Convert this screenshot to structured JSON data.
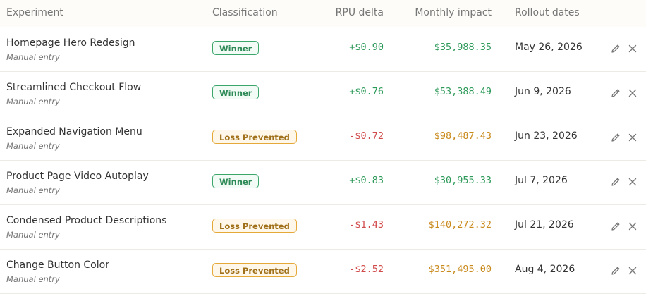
{
  "columns": {
    "experiment": "Experiment",
    "classification": "Classification",
    "rpu": "RPU delta",
    "impact": "Monthly impact",
    "rollout": "Rollout dates"
  },
  "rows": [
    {
      "name": "Homepage Hero Redesign",
      "source": "Manual entry",
      "classification": "Winner",
      "type": "win",
      "rpu": "+$0.90",
      "impact": "$35,988.35",
      "date": "May 26, 2026"
    },
    {
      "name": "Streamlined Checkout Flow",
      "source": "Manual entry",
      "classification": "Winner",
      "type": "win",
      "rpu": "+$0.76",
      "impact": "$53,388.49",
      "date": "Jun 9, 2026"
    },
    {
      "name": "Expanded Navigation Menu",
      "source": "Manual entry",
      "classification": "Loss Prevented",
      "type": "loss",
      "rpu": "-$0.72",
      "impact": "$98,487.43",
      "date": "Jun 23, 2026"
    },
    {
      "name": "Product Page Video Autoplay",
      "source": "Manual entry",
      "classification": "Winner",
      "type": "win",
      "rpu": "+$0.83",
      "impact": "$30,955.33",
      "date": "Jul 7, 2026"
    },
    {
      "name": "Condensed Product Descriptions",
      "source": "Manual entry",
      "classification": "Loss Prevented",
      "type": "loss",
      "rpu": "-$1.43",
      "impact": "$140,272.32",
      "date": "Jul 21, 2026"
    },
    {
      "name": "Change Button Color",
      "source": "Manual entry",
      "classification": "Loss Prevented",
      "type": "loss",
      "rpu": "-$2.52",
      "impact": "$351,495.00",
      "date": "Aug 4, 2026"
    }
  ],
  "icons": {
    "edit": "pencil-icon",
    "delete": "close-icon"
  },
  "colors": {
    "positive": "#2e9a5a",
    "negative": "#d14a4a",
    "warning": "#c98a1c"
  }
}
